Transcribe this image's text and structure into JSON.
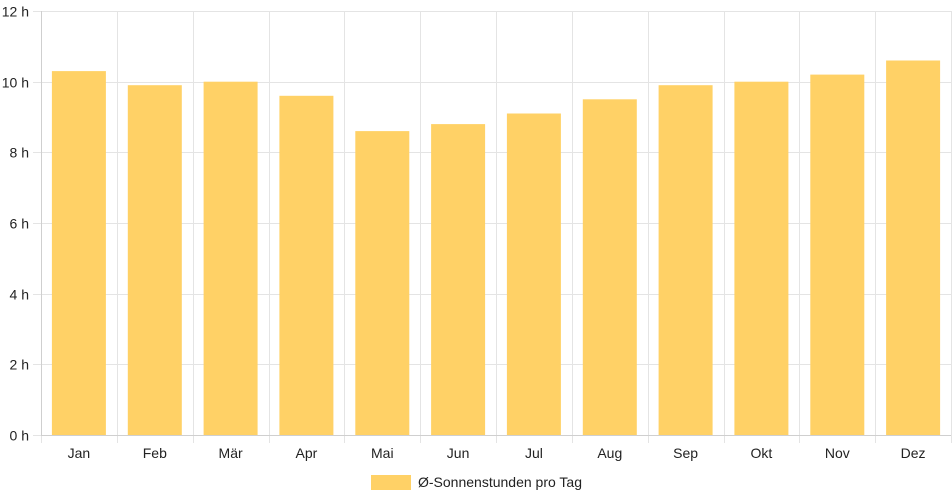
{
  "chart_data": {
    "type": "bar",
    "categories": [
      "Jan",
      "Feb",
      "Mär",
      "Apr",
      "Mai",
      "Jun",
      "Jul",
      "Aug",
      "Sep",
      "Okt",
      "Nov",
      "Dez"
    ],
    "series": [
      {
        "name": "Ø-Sonnenstunden pro Tag",
        "values": [
          10.3,
          9.9,
          10.0,
          9.6,
          8.6,
          8.8,
          9.1,
          9.5,
          9.9,
          10.0,
          10.2,
          10.6
        ],
        "color": "#ffd166"
      }
    ],
    "y_ticks": [
      "0 h",
      "2 h",
      "4 h",
      "6 h",
      "8 h",
      "10 h",
      "12 h"
    ],
    "ylim": [
      0,
      12
    ],
    "grid": true,
    "legend": "bottom-center"
  }
}
